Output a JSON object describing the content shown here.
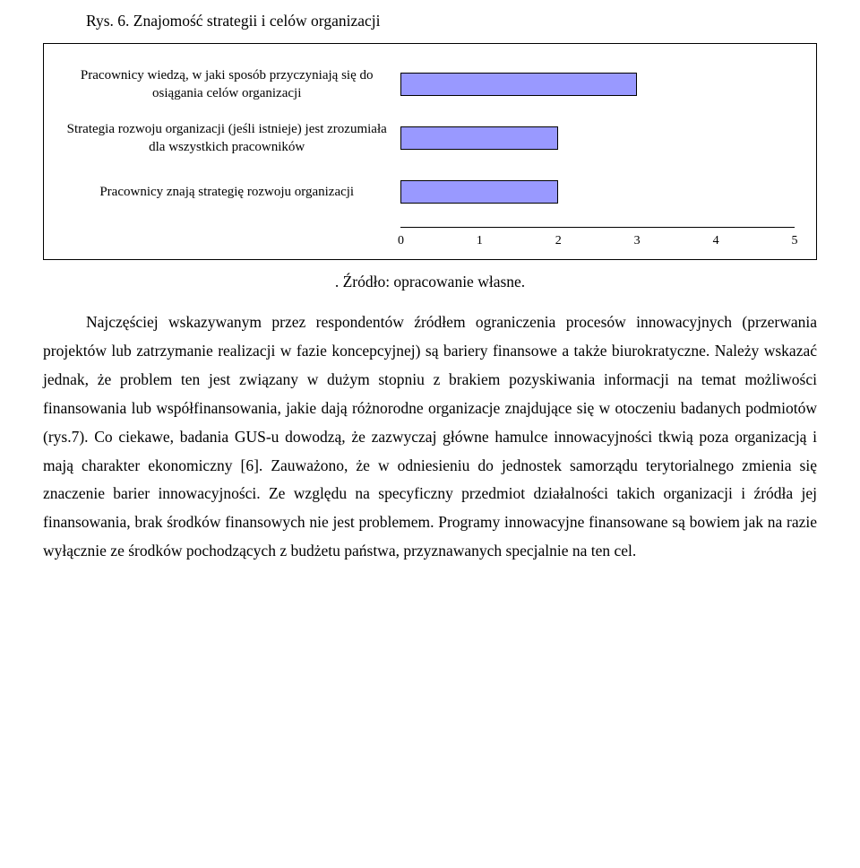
{
  "caption": "Rys. 6. Znajomość strategii i celów organizacji",
  "chart": {
    "type": "bar",
    "x_min": 0,
    "x_max": 5,
    "ticks": [
      0,
      1,
      2,
      3,
      4,
      5
    ],
    "bar_color": "#9999ff",
    "bar_border": "#000000",
    "rows": [
      {
        "label": "Pracownicy wiedzą, w jaki sposób przyczyniają się do osiągania celów organizacji",
        "value": 3.0
      },
      {
        "label": "Strategia rozwoju organizacji (jeśli istnieje) jest zrozumiała dla wszystkich pracowników",
        "value": 2.0
      },
      {
        "label": "Pracownicy znają strategię rozwoju organizacji",
        "value": 2.0
      }
    ]
  },
  "source": ". Źródło: opracowanie własne.",
  "para1": "Najczęściej wskazywanym przez respondentów źródłem ograniczenia procesów innowacyjnych (przerwania projektów lub zatrzymanie realizacji w fazie koncepcyjnej) są bariery finansowe a także biurokratyczne. Należy wskazać jednak, że problem ten jest związany w dużym stopniu z brakiem pozyskiwania informacji na temat możliwości finansowania lub współfinansowania, jakie dają różnorodne organizacje znajdujące się w otoczeniu badanych podmiotów (rys.7). Co ciekawe, badania GUS-u dowodzą, że zazwyczaj główne hamulce innowacyjności tkwią poza organizacją i mają charakter ekonomiczny [6]. Zauważono, że w odniesieniu do jednostek samorządu terytorialnego zmienia się znaczenie barier innowacyjności. Ze względu na specyficzny przedmiot działalności takich organizacji i  źródła jej finansowania, brak środków finansowych nie jest problemem. Programy innowacyjne finansowane są bowiem jak na razie wyłącznie ze środków pochodzących z  budżetu państwa, przyznawanych specjalnie na ten cel."
}
